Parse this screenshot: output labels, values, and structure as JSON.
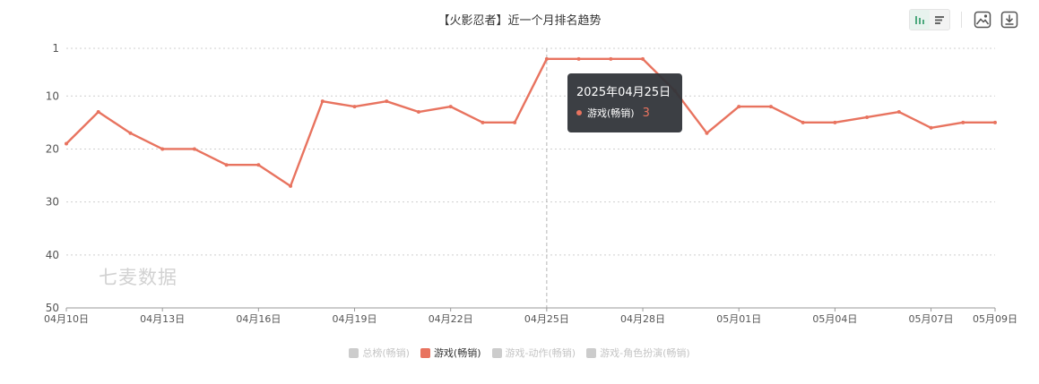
{
  "chart_data": {
    "type": "line",
    "title": "【火影忍者】近一个月排名趋势",
    "y_inverted": true,
    "ylim": [
      1,
      50
    ],
    "y_ticks": [
      "1",
      "10",
      "20",
      "30",
      "40",
      "50"
    ],
    "grid": "dotted-horizontal",
    "x": [
      "04月10日",
      "04月11日",
      "04月12日",
      "04月13日",
      "04月14日",
      "04月15日",
      "04月16日",
      "04月17日",
      "04月18日",
      "04月19日",
      "04月20日",
      "04月21日",
      "04月22日",
      "04月23日",
      "04月24日",
      "04月25日",
      "04月26日",
      "04月27日",
      "04月28日",
      "04月29日",
      "04月30日",
      "05月01日",
      "05月02日",
      "05月03日",
      "05月04日",
      "05月05日",
      "05月06日",
      "05月07日",
      "05月08日",
      "05月09日"
    ],
    "x_tick_labels": [
      "04月10日",
      "04月13日",
      "04月16日",
      "04月19日",
      "04月22日",
      "04月25日",
      "04月28日",
      "05月01日",
      "05月04日",
      "05月07日",
      "05月09日"
    ],
    "series": [
      {
        "name": "游戏(畅销)",
        "color": "#e8735f",
        "values": [
          19,
          13,
          17,
          20,
          20,
          23,
          23,
          27,
          11,
          12,
          11,
          13,
          12,
          15,
          15,
          3,
          3,
          3,
          3,
          9,
          17,
          12,
          12,
          15,
          15,
          14,
          13,
          16,
          15,
          15
        ]
      }
    ],
    "legend": {
      "position": "bottom-center",
      "items": [
        {
          "label": "总榜(畅销)",
          "active": false,
          "color": "#cccccc"
        },
        {
          "label": "游戏(畅销)",
          "active": true,
          "color": "#e8735f"
        },
        {
          "label": "游戏-动作(畅销)",
          "active": false,
          "color": "#cccccc"
        },
        {
          "label": "游戏-角色扮演(畅销)",
          "active": false,
          "color": "#cccccc"
        }
      ]
    },
    "tooltip": {
      "date": "2025年04月25日",
      "series": "游戏(畅销)",
      "value": "3"
    },
    "watermark": "七麦数据"
  },
  "toolbar": {
    "icons": [
      "line-chart-icon",
      "bar-list-icon",
      "image-download-icon",
      "download-icon"
    ],
    "accent_color": "#4eaa7f"
  }
}
